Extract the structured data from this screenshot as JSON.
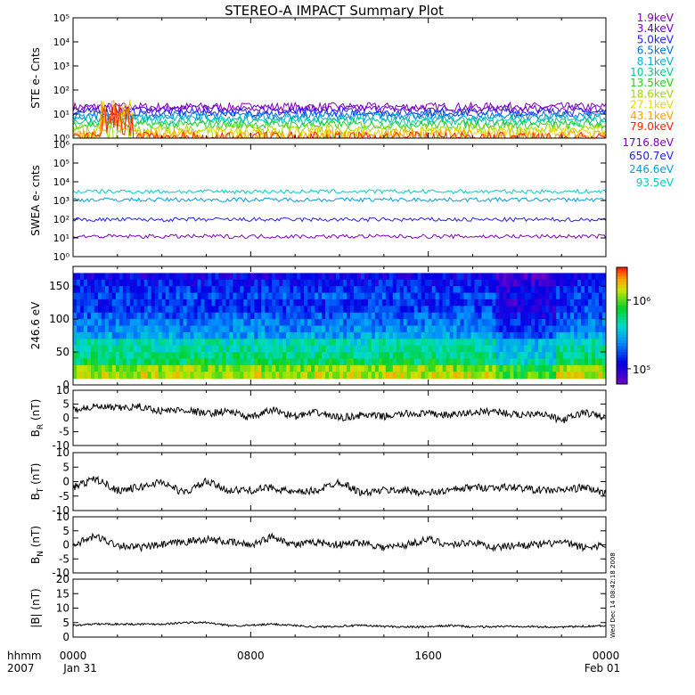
{
  "title": "STEREO-A IMPACT Summary Plot",
  "side_stamp": "Wed Dec 14 08:42:18 2008",
  "x_axis": {
    "corner_labels": [
      "hhmm",
      "2007"
    ],
    "ticks": [
      {
        "time": "0000",
        "date": "Jan 31"
      },
      {
        "time": "0800",
        "date": ""
      },
      {
        "time": "1600",
        "date": ""
      },
      {
        "time": "0000",
        "date": "Feb 01"
      }
    ],
    "range_hours": [
      0,
      24
    ]
  },
  "colors": {
    "ste": [
      "#8000c0",
      "#6a00d0",
      "#2020ff",
      "#0070e0",
      "#00b0d0",
      "#00c890",
      "#20d020",
      "#a0d800",
      "#e8d800",
      "#ffa000",
      "#ff2000"
    ],
    "swea": [
      "#8000c0",
      "#2020ff",
      "#00a0e0",
      "#00d0c0"
    ]
  },
  "chart_data": [
    {
      "type": "line",
      "panel": "STE",
      "ylabel": "STE e- Cnts",
      "yscale": "log",
      "ylim": [
        1,
        100000
      ],
      "yticks": [
        "10⁰",
        "10¹",
        "10²",
        "10³",
        "10⁴",
        "10⁵"
      ],
      "series": [
        {
          "name": "1.9keV",
          "level": 20
        },
        {
          "name": "3.4keV",
          "level": 16
        },
        {
          "name": "5.0keV",
          "level": 12
        },
        {
          "name": "6.5keV",
          "level": 9
        },
        {
          "name": "8.1keV",
          "level": 7
        },
        {
          "name": "10.3keV",
          "level": 5
        },
        {
          "name": "13.5keV",
          "level": 3.6
        },
        {
          "name": "18.6keV",
          "level": 2.6
        },
        {
          "name": "27.1keV",
          "level": 1.9
        },
        {
          "name": "43.1keV",
          "level": 1.5
        },
        {
          "name": "79.0keV",
          "level": 1.2
        }
      ]
    },
    {
      "type": "line",
      "panel": "SWEA",
      "ylabel": "SWEA e- cnts",
      "yscale": "log",
      "ylim": [
        1,
        1000000
      ],
      "yticks": [
        "10⁰",
        "10¹",
        "10²",
        "10³",
        "10⁴",
        "10⁵",
        "10⁶"
      ],
      "series": [
        {
          "name": "1716.8eV",
          "level": 12
        },
        {
          "name": "650.7eV",
          "level": 95
        },
        {
          "name": "246.6eV",
          "level": 1100
        },
        {
          "name": "93.5eV",
          "level": 3000
        }
      ]
    },
    {
      "type": "heatmap",
      "panel": "PAD",
      "ylabel": "246.6 eV",
      "ylim": [
        0,
        180
      ],
      "yticks": [
        0,
        50,
        100,
        150
      ],
      "colorbar": {
        "scale": "log",
        "range": [
          60000,
          3000000
        ],
        "ticks": [
          "10⁶",
          "10⁵"
        ]
      }
    },
    {
      "type": "line",
      "panel": "BR",
      "ylabel": "B",
      "ylabel_sub": "R",
      "ylabel_unit": "(nT)",
      "ylim": [
        -10,
        10
      ],
      "yticks": [
        -10,
        -5,
        0,
        5,
        10
      ],
      "x_hours": [
        0,
        1,
        2,
        3,
        4,
        5,
        6,
        7,
        8,
        9,
        10,
        11,
        12,
        13,
        14,
        15,
        16,
        17,
        18,
        19,
        20,
        21,
        22,
        23,
        24
      ],
      "values": [
        3,
        4,
        3.5,
        4,
        2.5,
        3,
        1.5,
        2.5,
        0,
        3,
        0.5,
        2,
        0,
        1,
        0.5,
        1.5,
        1.5,
        1,
        2,
        2.5,
        1,
        2,
        -1,
        2,
        0
      ]
    },
    {
      "type": "line",
      "panel": "BT",
      "ylabel": "B",
      "ylabel_sub": "T",
      "ylabel_unit": "(nT)",
      "ylim": [
        -10,
        10
      ],
      "yticks": [
        -10,
        -5,
        0,
        5,
        10
      ],
      "x_hours": [
        0,
        1,
        2,
        3,
        4,
        5,
        6,
        7,
        8,
        9,
        10,
        11,
        12,
        13,
        14,
        15,
        16,
        17,
        18,
        19,
        20,
        21,
        22,
        23,
        24
      ],
      "values": [
        -2,
        1,
        -3,
        -2,
        0,
        -4,
        0,
        -3,
        -3,
        -2,
        -4,
        -3,
        0,
        -4,
        -3,
        -3,
        -4,
        -3,
        -2,
        -2,
        -2,
        -3,
        -3,
        -2,
        -4
      ]
    },
    {
      "type": "line",
      "panel": "BN",
      "ylabel": "B",
      "ylabel_sub": "N",
      "ylabel_unit": "(nT)",
      "ylim": [
        -10,
        10
      ],
      "yticks": [
        -10,
        -5,
        0,
        5,
        10
      ],
      "x_hours": [
        0,
        1,
        2,
        3,
        4,
        5,
        6,
        7,
        8,
        9,
        10,
        11,
        12,
        13,
        14,
        15,
        16,
        17,
        18,
        19,
        20,
        21,
        22,
        23,
        24
      ],
      "values": [
        0,
        3,
        0,
        -1,
        0,
        1,
        2,
        1,
        0,
        3,
        0,
        1,
        0,
        1,
        -1,
        0,
        2,
        0,
        1,
        -1,
        0,
        0,
        1,
        -1,
        0
      ]
    },
    {
      "type": "line",
      "panel": "BMAG",
      "ylabel": "|B| (nT)",
      "ylim": [
        0,
        20
      ],
      "yticks": [
        0,
        5,
        10,
        15,
        20
      ],
      "x_hours": [
        0,
        1,
        2,
        3,
        4,
        5,
        6,
        7,
        8,
        9,
        10,
        11,
        12,
        13,
        14,
        15,
        16,
        17,
        18,
        19,
        20,
        21,
        22,
        23,
        24
      ],
      "values": [
        4,
        4.5,
        4.5,
        4.5,
        4.5,
        5,
        5,
        4,
        4,
        4.5,
        4,
        3.5,
        3.8,
        4,
        3.7,
        3.5,
        3.5,
        4,
        3.5,
        3.6,
        3.8,
        3.5,
        3.5,
        3.7,
        4
      ]
    }
  ]
}
